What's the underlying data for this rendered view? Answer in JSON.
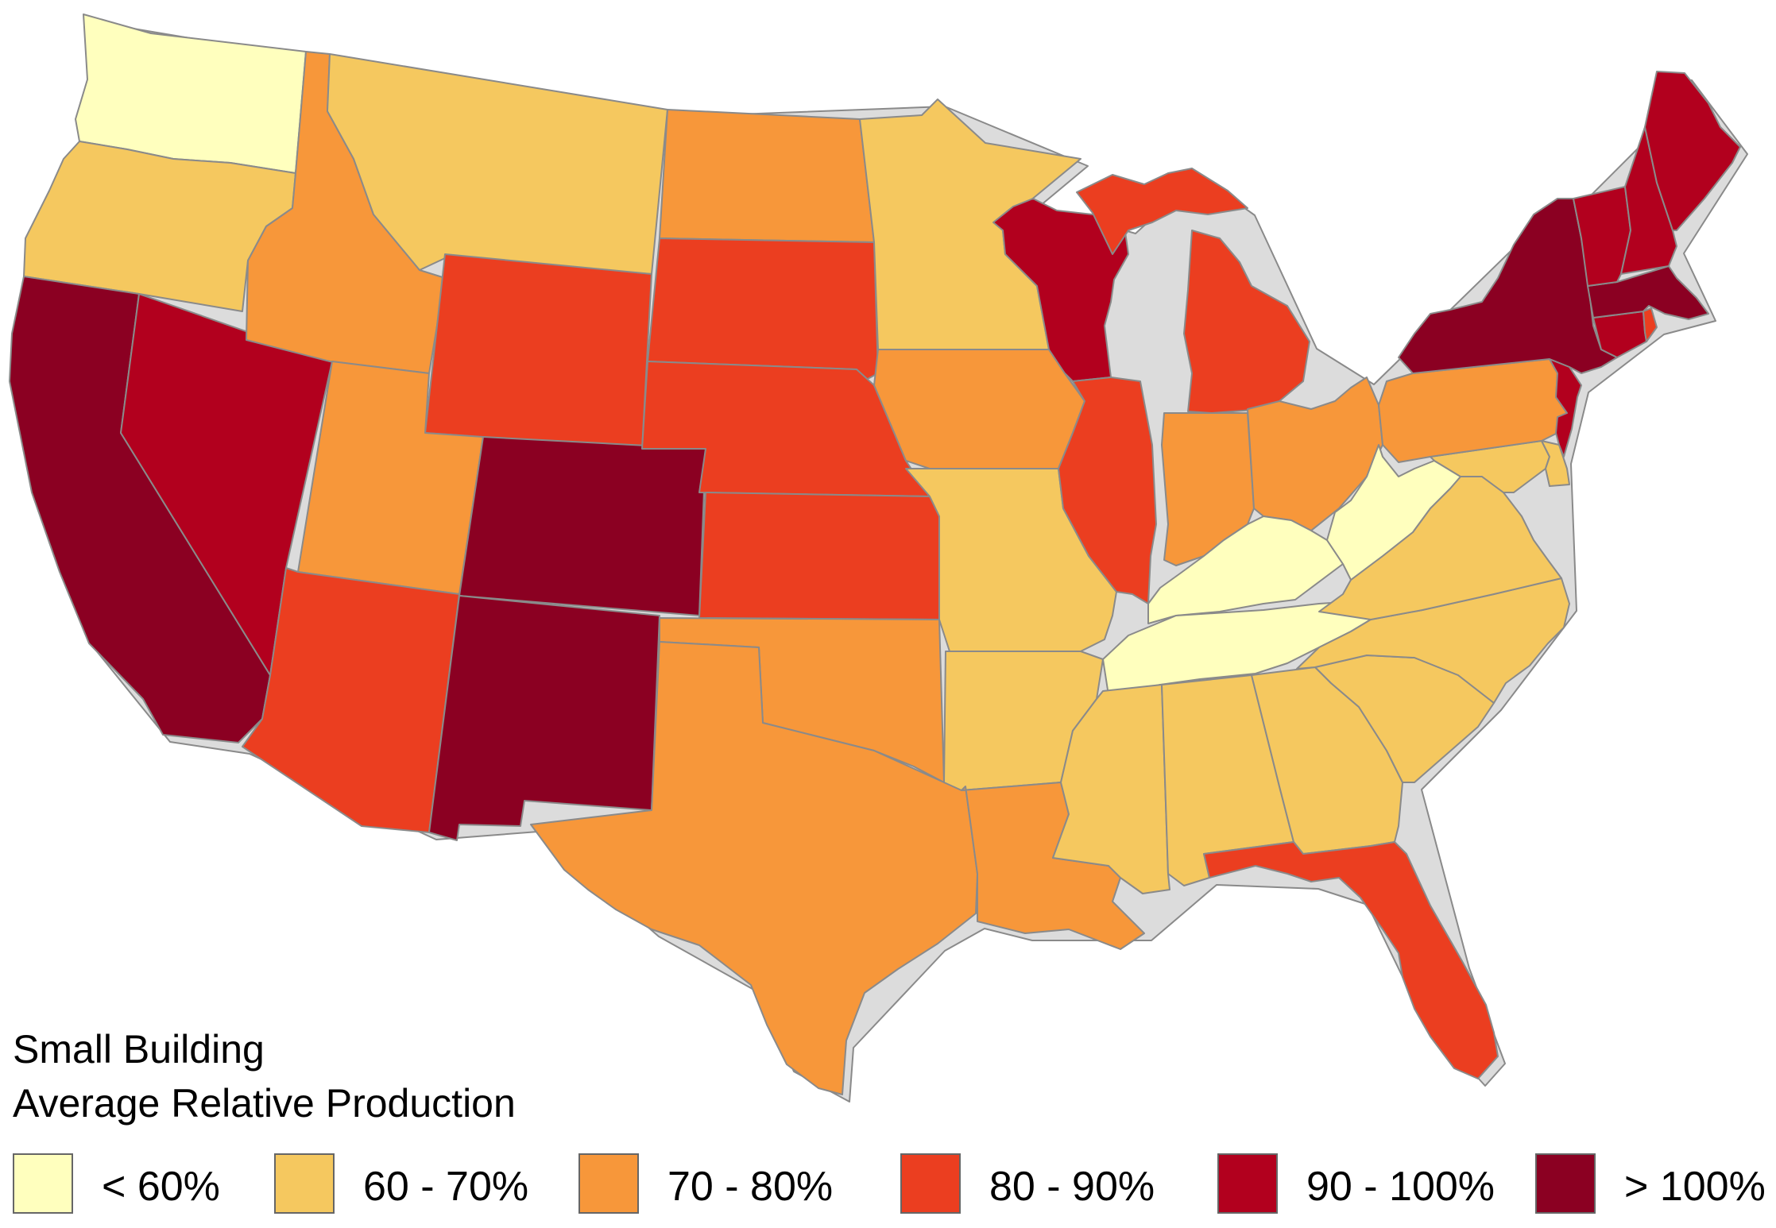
{
  "title_lines": [
    "Small Building",
    "Average Relative Production"
  ],
  "colors": {
    "lt60": "#ffffbe",
    "c60_70": "#f5c85f",
    "c70_80": "#f7973a",
    "c80_90": "#eb3e20",
    "c90_100": "#b2001e",
    "gt100": "#8b0022",
    "coast_shadow": "#dcdcdc",
    "border": "#8a8a8a"
  },
  "legend": [
    {
      "label": "< 60%",
      "class": "lt60"
    },
    {
      "label": "60 - 70%",
      "class": "c60_70"
    },
    {
      "label": "70 - 80%",
      "class": "c70_80"
    },
    {
      "label": "80 - 90%",
      "class": "c80_90"
    },
    {
      "label": "90 - 100%",
      "class": "c90_100"
    },
    {
      "label": "> 100%",
      "class": "gt100"
    }
  ],
  "states": [
    {
      "name": "Washington",
      "class": "lt60"
    },
    {
      "name": "Oregon",
      "class": "c60_70"
    },
    {
      "name": "California",
      "class": "gt100"
    },
    {
      "name": "Nevada",
      "class": "c90_100"
    },
    {
      "name": "Idaho",
      "class": "c70_80"
    },
    {
      "name": "Montana",
      "class": "c60_70"
    },
    {
      "name": "Wyoming",
      "class": "c80_90"
    },
    {
      "name": "Utah",
      "class": "c70_80"
    },
    {
      "name": "Colorado",
      "class": "gt100"
    },
    {
      "name": "Arizona",
      "class": "c80_90"
    },
    {
      "name": "New Mexico",
      "class": "gt100"
    },
    {
      "name": "North Dakota",
      "class": "c70_80"
    },
    {
      "name": "South Dakota",
      "class": "c80_90"
    },
    {
      "name": "Nebraska",
      "class": "c80_90"
    },
    {
      "name": "Kansas",
      "class": "c80_90"
    },
    {
      "name": "Oklahoma",
      "class": "c70_80"
    },
    {
      "name": "Texas",
      "class": "c70_80"
    },
    {
      "name": "Minnesota",
      "class": "c60_70"
    },
    {
      "name": "Iowa",
      "class": "c70_80"
    },
    {
      "name": "Missouri",
      "class": "c60_70"
    },
    {
      "name": "Arkansas",
      "class": "c60_70"
    },
    {
      "name": "Louisiana",
      "class": "c70_80"
    },
    {
      "name": "Wisconsin",
      "class": "c90_100"
    },
    {
      "name": "Illinois",
      "class": "c80_90"
    },
    {
      "name": "Michigan",
      "class": "c80_90"
    },
    {
      "name": "Indiana",
      "class": "c70_80"
    },
    {
      "name": "Ohio",
      "class": "c70_80"
    },
    {
      "name": "Kentucky",
      "class": "lt60"
    },
    {
      "name": "Tennessee",
      "class": "lt60"
    },
    {
      "name": "Mississippi",
      "class": "c60_70"
    },
    {
      "name": "Alabama",
      "class": "c60_70"
    },
    {
      "name": "Georgia",
      "class": "c60_70"
    },
    {
      "name": "Florida",
      "class": "c80_90"
    },
    {
      "name": "South Carolina",
      "class": "c60_70"
    },
    {
      "name": "North Carolina",
      "class": "c60_70"
    },
    {
      "name": "Virginia",
      "class": "c60_70"
    },
    {
      "name": "West Virginia",
      "class": "lt60"
    },
    {
      "name": "Maryland",
      "class": "c60_70"
    },
    {
      "name": "Delaware",
      "class": "c60_70"
    },
    {
      "name": "Pennsylvania",
      "class": "c70_80"
    },
    {
      "name": "New Jersey",
      "class": "c90_100"
    },
    {
      "name": "New York",
      "class": "gt100"
    },
    {
      "name": "Connecticut",
      "class": "c90_100"
    },
    {
      "name": "Rhode Island",
      "class": "c80_90"
    },
    {
      "name": "Massachusetts",
      "class": "gt100"
    },
    {
      "name": "Vermont",
      "class": "c90_100"
    },
    {
      "name": "New Hampshire",
      "class": "c90_100"
    },
    {
      "name": "Maine",
      "class": "c90_100"
    }
  ]
}
